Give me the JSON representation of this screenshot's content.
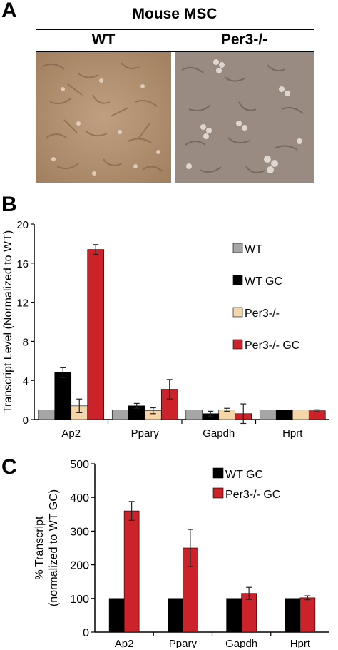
{
  "panelA": {
    "letter": "A",
    "title": "Mouse MSC",
    "images": [
      {
        "label": "WT"
      },
      {
        "label": "Per3-/-"
      }
    ]
  },
  "chart_data": [
    {
      "panel": "B",
      "type": "bar",
      "ylabel": "Transcript Level (Normalized to WT)",
      "categories": [
        "Ap2",
        "Pparγ",
        "Gapdh",
        "Hprt"
      ],
      "ylim": [
        0,
        20
      ],
      "yticks": [
        0,
        4,
        8,
        12,
        16,
        20
      ],
      "legend_position": "right",
      "series": [
        {
          "name": "WT",
          "color": "#a6a6a6",
          "values": [
            1,
            1,
            1,
            1
          ],
          "errors": [
            0,
            0,
            0,
            0
          ]
        },
        {
          "name": "WT GC",
          "color": "#000000",
          "values": [
            4.8,
            1.4,
            0.6,
            1.0
          ],
          "errors": [
            0.5,
            0.25,
            0.25,
            0
          ]
        },
        {
          "name": "Per3-/-",
          "color": "#f5d6a8",
          "values": [
            1.4,
            0.9,
            1.0,
            1.0
          ],
          "errors": [
            0.7,
            0.3,
            0.15,
            0
          ]
        },
        {
          "name": "Per3-/- GC",
          "color": "#cc2229",
          "values": [
            17.4,
            3.1,
            0.6,
            0.9
          ],
          "errors": [
            0.5,
            1.0,
            1.0,
            0.1
          ]
        }
      ]
    },
    {
      "panel": "C",
      "type": "bar",
      "ylabel_lines": [
        "% Transcript",
        "(normalized to WT GC)"
      ],
      "categories": [
        "Ap2",
        "Pparγ",
        "Gapdh",
        "Hprt"
      ],
      "ylim": [
        0,
        500
      ],
      "yticks": [
        0,
        100,
        200,
        300,
        400,
        500
      ],
      "legend_position": "top-right",
      "series": [
        {
          "name": "WT GC",
          "color": "#000000",
          "values": [
            100,
            100,
            100,
            100
          ],
          "errors": [
            0,
            0,
            0,
            0
          ]
        },
        {
          "name": "Per3-/- GC",
          "color": "#cc2229",
          "values": [
            360,
            250,
            115,
            102
          ],
          "errors": [
            28,
            55,
            18,
            6
          ]
        }
      ]
    }
  ]
}
